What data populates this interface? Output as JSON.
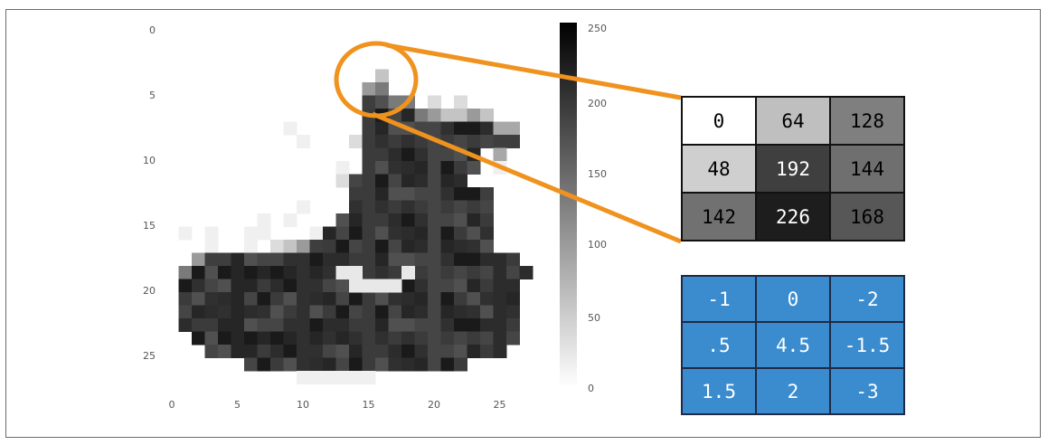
{
  "image_plot": {
    "y_ticks": [
      "0",
      "5",
      "10",
      "15",
      "20",
      "25"
    ],
    "x_ticks": [
      "0",
      "5",
      "10",
      "15",
      "20",
      "25"
    ],
    "colorbar_ticks": [
      "250",
      "200",
      "150",
      "100",
      "50",
      "0"
    ],
    "colormap": "gray_r",
    "grid_size": 28
  },
  "highlight_color": "#f0921e",
  "pixel_values": [
    [
      "0",
      "64",
      "128"
    ],
    [
      "48",
      "192",
      "144"
    ],
    [
      "142",
      "226",
      "168"
    ]
  ],
  "pixel_intensities": [
    [
      0,
      64,
      128
    ],
    [
      48,
      192,
      144
    ],
    [
      142,
      226,
      168
    ]
  ],
  "kernel_values": [
    [
      "-1",
      "0",
      "-2"
    ],
    [
      ".5",
      "4.5",
      "-1.5"
    ],
    [
      "1.5",
      "2",
      "-3"
    ]
  ],
  "kernel_color": "#3a8ccf"
}
